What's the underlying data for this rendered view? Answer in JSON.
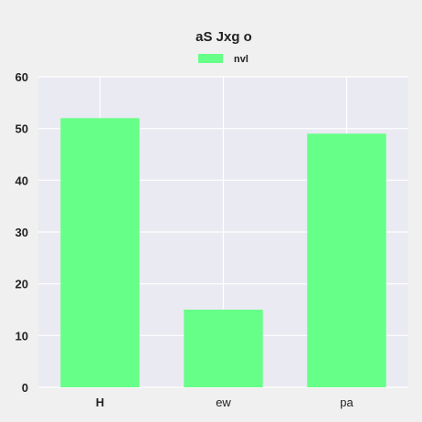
{
  "chart_data": {
    "type": "bar",
    "title": "aS  Jxg  o",
    "categories": [
      "H",
      "ew",
      "pa"
    ],
    "series": [
      {
        "name": "nvl",
        "values": [
          52,
          15,
          49
        ]
      }
    ],
    "xlabel": "",
    "ylabel": "",
    "ylim": [
      0,
      60
    ],
    "yticks": [
      0,
      10,
      20,
      30,
      40,
      50,
      60
    ],
    "grid": true,
    "legend": "top-center",
    "colors": {
      "bar": "#66ff88",
      "plot_background": "#eaeaf2",
      "page_background": "#f0f0f0",
      "grid": "#ffffff",
      "text": "#222222"
    }
  }
}
